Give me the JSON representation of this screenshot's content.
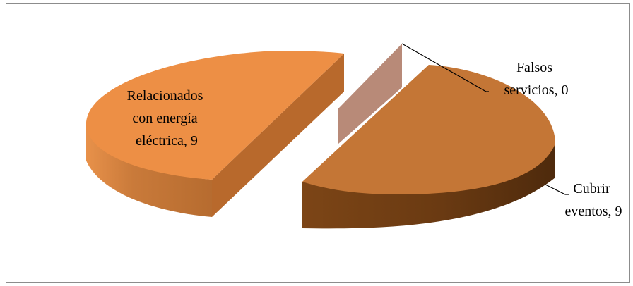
{
  "chart_data": {
    "type": "pie",
    "style": "3d-exploded",
    "title": "",
    "slices": [
      {
        "label": "Relacionados con energía eléctrica",
        "value": 9,
        "color": "#ED8F45"
      },
      {
        "label": "Falsos servicios",
        "value": 0,
        "color": "#B88A78"
      },
      {
        "label": "Cubrir eventos",
        "value": 9,
        "color": "#C47636"
      }
    ],
    "data_labels": [
      {
        "lines": [
          "Relacionados",
          "con energía",
          "eléctrica, 9"
        ]
      },
      {
        "lines": [
          "Falsos",
          "servicios, 0"
        ]
      },
      {
        "lines": [
          "Cubrir",
          "eventos, 9"
        ]
      }
    ]
  }
}
